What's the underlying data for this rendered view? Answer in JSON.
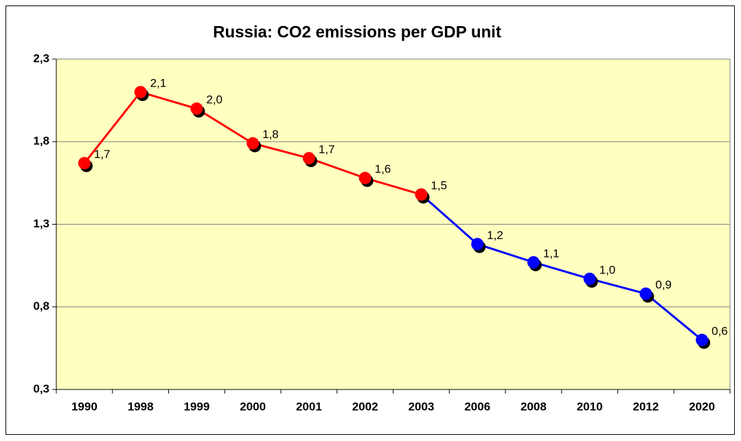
{
  "chart_data": {
    "type": "line",
    "title": "Russia: CO2 emissions per GDP unit",
    "categories": [
      "1990",
      "1998",
      "1999",
      "2000",
      "2001",
      "2002",
      "2003",
      "2006",
      "2008",
      "2010",
      "2012",
      "2020"
    ],
    "series": [
      {
        "color": "#ff0000",
        "values": [
          1.67,
          2.1,
          2.0,
          1.79,
          1.7,
          1.58,
          1.48,
          null,
          null,
          null,
          null,
          null
        ],
        "value_labels": [
          "1,7",
          "2,1",
          "2,0",
          "1,8",
          "1,7",
          "1,6",
          "1,5",
          null,
          null,
          null,
          null,
          null
        ]
      },
      {
        "color": "#0000ff",
        "values": [
          null,
          null,
          null,
          null,
          null,
          null,
          1.48,
          1.18,
          1.07,
          0.97,
          0.88,
          0.6
        ],
        "value_labels": [
          null,
          null,
          null,
          null,
          null,
          null,
          null,
          "1,2",
          "1,1",
          "1,0",
          "0,9",
          "0,6"
        ]
      }
    ],
    "ylim": [
      0.3,
      2.3
    ],
    "yticks": [
      {
        "value": 0.3,
        "label": "0,3"
      },
      {
        "value": 0.8,
        "label": "0,8"
      },
      {
        "value": 1.3,
        "label": "1,3"
      },
      {
        "value": 1.8,
        "label": "1,8"
      },
      {
        "value": 2.3,
        "label": "2,3"
      }
    ],
    "grid": true,
    "plot_background": "#ffffc0"
  }
}
